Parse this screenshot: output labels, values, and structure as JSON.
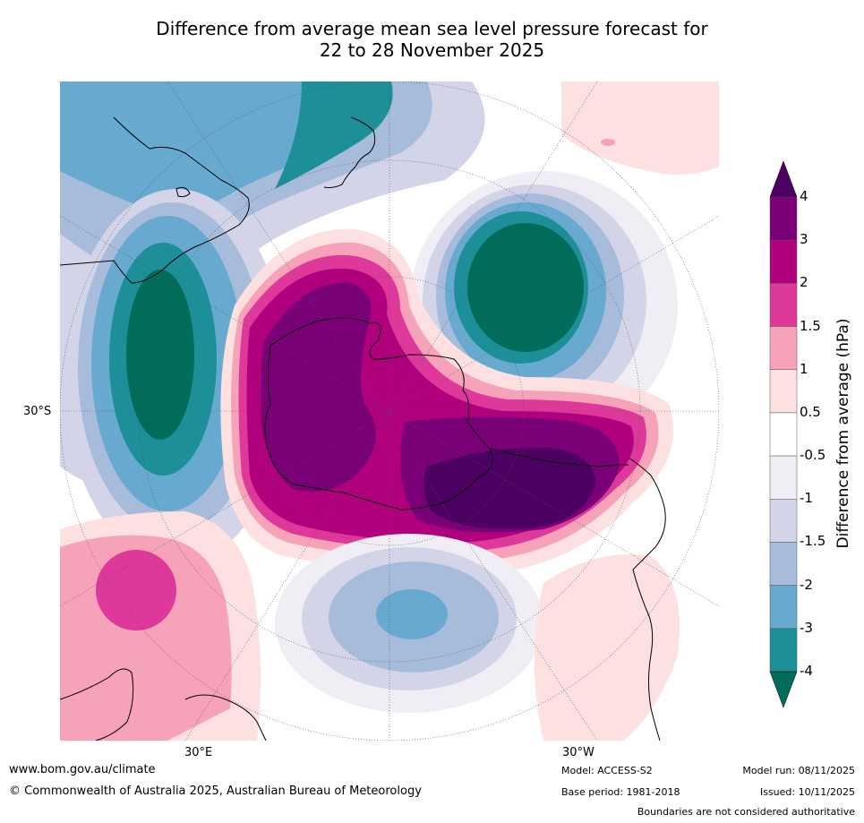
{
  "header": {
    "title_line1": "Difference from average mean sea level pressure forecast for",
    "title_line2": "22 to 28 November 2025"
  },
  "map": {
    "lat_labels": [
      "30°S"
    ],
    "lon_labels": [
      "30°E",
      "30°W"
    ],
    "colors": {
      "land": "#000000",
      "grid": "#555555"
    }
  },
  "legend": {
    "title": "Difference from average (hPa)",
    "ticks": [
      "4",
      "3",
      "2",
      "1.5",
      "1",
      "0.5",
      "-0.5",
      "-1",
      "-1.5",
      "-2",
      "-3",
      "-4"
    ],
    "colors": [
      "#4b0062",
      "#7a0077",
      "#b0007d",
      "#de389b",
      "#f6a2b8",
      "#fde0e0",
      "#ffffff",
      "#f0edf4",
      "#d3d4e7",
      "#a7bcdb",
      "#67a9cf",
      "#1c8f98",
      "#016c59"
    ]
  },
  "footer": {
    "website": "www.bom.gov.au/climate",
    "copyright": "© Commonwealth of Australia 2025, Australian Bureau of Meteorology",
    "model": "Model: ACCESS-S2",
    "base_period": "Base period: 1981-2018",
    "model_run": "Model run: 08/11/2025",
    "issued": "Issued: 10/11/2025",
    "disclaimer": "Boundaries are not considered authoritative"
  }
}
